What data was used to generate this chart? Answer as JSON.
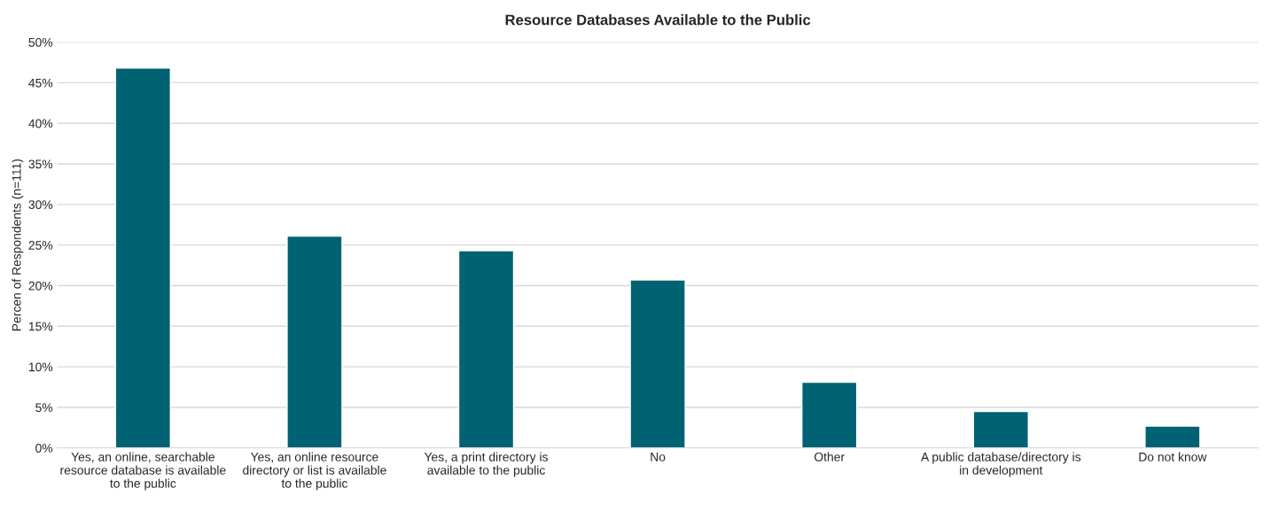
{
  "chart_data": {
    "type": "bar",
    "title": "Resource Databases Available to the Public",
    "ylabel": "Percen of Respondents (n=111)",
    "categories": [
      "Yes, an online, searchable resource database is available to the public",
      "Yes, an online resource directory or list is available to the public",
      "Yes, a print directory is available to the public",
      "No",
      "Other",
      "A public database/directory is in development",
      "Do not know"
    ],
    "values": [
      46.8,
      26.1,
      24.3,
      20.7,
      8.1,
      4.5,
      2.7
    ],
    "color": "#006272",
    "ylim": [
      0,
      50
    ],
    "yticks": [
      {
        "value": 0,
        "label": "0%"
      },
      {
        "value": 5,
        "label": "5%"
      },
      {
        "value": 10,
        "label": "10%"
      },
      {
        "value": 15,
        "label": "15%"
      },
      {
        "value": 20,
        "label": "20%"
      },
      {
        "value": 25,
        "label": "25%"
      },
      {
        "value": 30,
        "label": "30%"
      },
      {
        "value": 35,
        "label": "35%"
      },
      {
        "value": 40,
        "label": "40%"
      },
      {
        "value": 45,
        "label": "45%"
      },
      {
        "value": 50,
        "label": "50%"
      }
    ],
    "grid": "y"
  }
}
